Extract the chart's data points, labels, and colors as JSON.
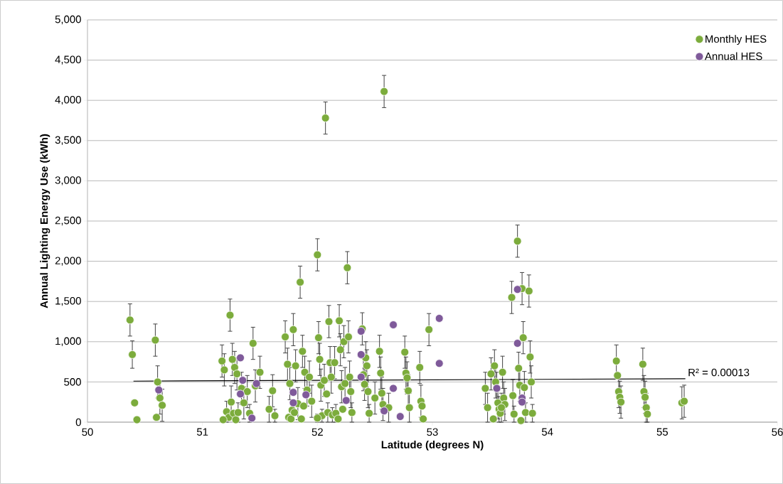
{
  "chart_data": {
    "type": "scatter",
    "xlabel": "Latitude (degrees N)",
    "ylabel": "Annual Lighting Energy Use (kWh)",
    "xlim": [
      50,
      56
    ],
    "xticks": [
      50,
      51,
      52,
      53,
      54,
      55,
      56
    ],
    "ylim": [
      0,
      5000
    ],
    "yticks": [
      {
        "value": 0,
        "label": "0"
      },
      {
        "value": 500,
        "label": "500"
      },
      {
        "value": 1000,
        "label": "1,000"
      },
      {
        "value": 1500,
        "label": "1,500"
      },
      {
        "value": 2000,
        "label": "2,000"
      },
      {
        "value": 2500,
        "label": "2,500"
      },
      {
        "value": 3000,
        "label": "3,000"
      },
      {
        "value": 3500,
        "label": "3,500"
      },
      {
        "value": 4000,
        "label": "4,000"
      },
      {
        "value": 4500,
        "label": "4,500"
      },
      {
        "value": 5000,
        "label": "5,000"
      }
    ],
    "grid": "y",
    "legend": "top right",
    "annotations": [
      "R² = 0.00013"
    ],
    "series": [
      {
        "name": "Monthly HES",
        "color": "#7cac3c",
        "marker": "circle",
        "x": [
          50.37,
          50.39,
          50.41,
          50.43,
          50.59,
          50.61,
          50.63,
          50.65,
          50.6,
          51.17,
          51.19,
          51.21,
          51.23,
          51.18,
          51.24,
          51.26,
          51.28,
          51.25,
          51.27,
          51.29,
          51.3,
          51.31,
          51.34,
          51.36,
          51.39,
          51.41,
          51.44,
          51.46,
          51.5,
          51.58,
          51.61,
          51.63,
          51.72,
          51.74,
          51.76,
          51.78,
          51.75,
          51.77,
          51.79,
          51.81,
          51.83,
          51.8,
          51.85,
          51.87,
          51.89,
          51.91,
          51.88,
          51.86,
          51.93,
          51.95,
          52.0,
          52.01,
          52.02,
          52.03,
          52.04,
          52.0,
          52.07,
          52.06,
          52.08,
          52.09,
          52.1,
          52.11,
          52.12,
          52.13,
          52.15,
          52.16,
          52.19,
          52.2,
          52.21,
          52.22,
          52.18,
          52.23,
          52.24,
          52.26,
          52.27,
          52.28,
          52.29,
          52.3,
          52.39,
          52.4,
          52.41,
          52.42,
          52.43,
          52.44,
          52.45,
          52.5,
          52.54,
          52.55,
          52.56,
          52.57,
          52.58,
          52.62,
          52.76,
          52.77,
          52.78,
          52.79,
          52.8,
          52.89,
          52.9,
          52.91,
          52.92,
          52.97,
          53.46,
          53.48,
          53.51,
          53.53,
          53.54,
          53.55,
          53.56,
          53.57,
          53.58,
          53.59,
          53.61,
          53.62,
          53.63,
          53.6,
          53.69,
          53.7,
          53.71,
          53.74,
          53.75,
          53.76,
          53.77,
          53.78,
          53.79,
          53.8,
          53.81,
          53.84,
          53.85,
          53.86,
          53.87,
          54.6,
          54.61,
          54.62,
          54.63,
          54.64,
          54.83,
          54.84,
          54.85,
          54.86,
          54.87,
          55.17,
          55.19
        ],
        "values": [
          1270,
          840,
          240,
          30,
          1020,
          500,
          300,
          210,
          60,
          760,
          650,
          130,
          60,
          30,
          1330,
          780,
          680,
          250,
          110,
          30,
          600,
          120,
          420,
          240,
          380,
          110,
          980,
          450,
          620,
          160,
          390,
          80,
          1060,
          720,
          480,
          150,
          60,
          40,
          1150,
          700,
          230,
          120,
          1740,
          880,
          620,
          400,
          200,
          40,
          560,
          260,
          2080,
          1050,
          780,
          460,
          80,
          50,
          3780,
          520,
          350,
          120,
          1250,
          740,
          560,
          90,
          740,
          110,
          1260,
          900,
          440,
          160,
          40,
          1000,
          480,
          1920,
          1060,
          560,
          380,
          120,
          1160,
          590,
          470,
          800,
          700,
          380,
          110,
          300,
          880,
          610,
          360,
          220,
          4110,
          180,
          870,
          610,
          550,
          390,
          180,
          680,
          260,
          200,
          40,
          1150,
          420,
          180,
          600,
          40,
          700,
          500,
          420,
          240,
          160,
          110,
          620,
          300,
          220,
          180,
          1550,
          330,
          100,
          2250,
          670,
          460,
          20,
          1660,
          1050,
          430,
          120,
          1630,
          810,
          500,
          110,
          760,
          580,
          380,
          310,
          250,
          720,
          380,
          310,
          180,
          100,
          240,
          260
        ],
        "errors": [
          200,
          170,
          null,
          null,
          200,
          200,
          200,
          200,
          null,
          200,
          200,
          130,
          null,
          null,
          200,
          200,
          200,
          200,
          null,
          null,
          200,
          120,
          200,
          200,
          200,
          110,
          200,
          200,
          200,
          160,
          200,
          80,
          200,
          200,
          200,
          null,
          null,
          null,
          200,
          200,
          200,
          null,
          200,
          200,
          200,
          200,
          null,
          null,
          200,
          200,
          200,
          200,
          200,
          200,
          80,
          50,
          200,
          200,
          null,
          120,
          200,
          200,
          200,
          90,
          200,
          110,
          200,
          200,
          200,
          null,
          null,
          200,
          200,
          200,
          200,
          200,
          200,
          120,
          200,
          200,
          200,
          200,
          200,
          200,
          110,
          200,
          200,
          200,
          200,
          200,
          200,
          180,
          200,
          200,
          200,
          200,
          180,
          200,
          200,
          null,
          null,
          200,
          200,
          180,
          200,
          null,
          200,
          200,
          200,
          200,
          160,
          null,
          200,
          200,
          200,
          180,
          200,
          200,
          100,
          200,
          200,
          200,
          null,
          200,
          200,
          200,
          120,
          200,
          200,
          200,
          110,
          200,
          null,
          200,
          200,
          200,
          200,
          200,
          200,
          180,
          100,
          200,
          200
        ]
      },
      {
        "name": "Annual HES",
        "color": "#7f5a9a",
        "marker": "circle",
        "x": [
          50.62,
          51.33,
          51.35,
          51.33,
          51.43,
          51.47,
          51.79,
          51.79,
          51.9,
          52.38,
          52.38,
          52.38,
          52.25,
          52.58,
          52.66,
          52.66,
          52.72,
          53.06,
          53.06,
          53.56,
          53.74,
          53.74,
          53.78,
          53.78
        ],
        "values": [
          400,
          800,
          520,
          350,
          50,
          480,
          370,
          240,
          340,
          1130,
          840,
          560,
          270,
          140,
          1210,
          420,
          70,
          1290,
          730,
          420,
          1650,
          980,
          300,
          250
        ]
      },
      {
        "type": "line",
        "marker": "none",
        "color": "#000000",
        "x": [
          50.4,
          55.2
        ],
        "values": [
          510,
          540
        ]
      }
    ]
  }
}
